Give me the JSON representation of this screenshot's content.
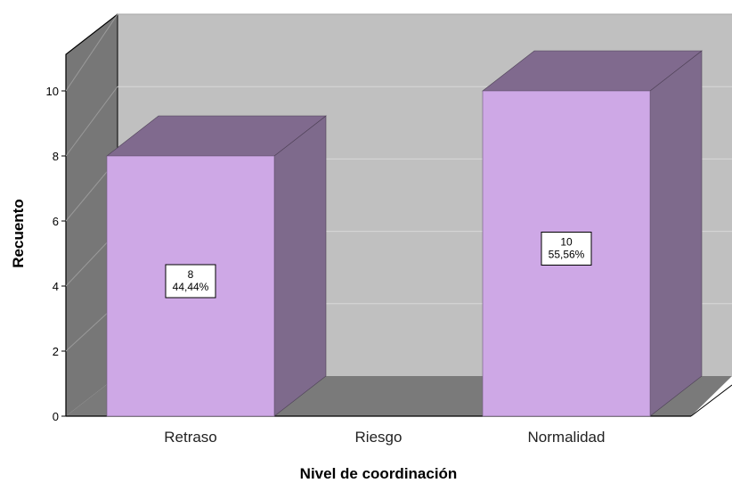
{
  "chart_data": {
    "type": "bar",
    "categories": [
      "Retraso",
      "Riesgo",
      "Normalidad"
    ],
    "values": [
      8,
      0,
      10
    ],
    "percent_labels": [
      "44,44%",
      "",
      "55,56%"
    ],
    "xlabel": "Nivel de coordinación",
    "ylabel": "Recuento",
    "ylim": [
      0,
      10
    ],
    "yticks": [
      "0",
      "2",
      "4",
      "6",
      "8",
      "10"
    ],
    "grid": true,
    "style": "3d",
    "colors": {
      "bar_front": "#cea8e6",
      "bar_side": "#7e6a8c",
      "bar_top": "#806a8e",
      "back_wall": "#c0c0c0",
      "left_wall": "#777777",
      "floor": "#7a7a7a",
      "gridline": "#d8d8d8"
    }
  }
}
